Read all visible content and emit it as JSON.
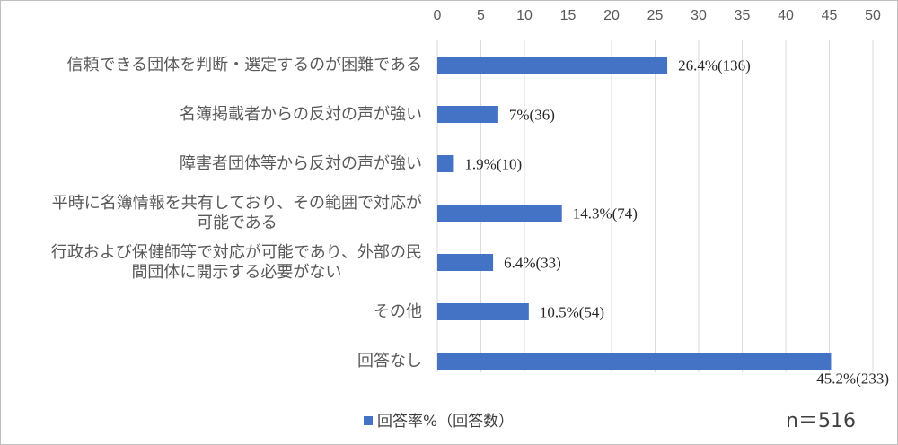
{
  "chart_data": {
    "type": "hbar",
    "categories": [
      "信頼できる団体を判断・選定するのが困難である",
      "名簿掲載者からの反対の声が強い",
      "障害者団体等から反対の声が強い",
      "平時に名簿情報を共有しており、その範囲で対応が\n可能である",
      "行政および保健師等で対応が可能であり、外部の民\n間団体に開示する必要がない",
      "その他",
      "回答なし"
    ],
    "series": [
      {
        "name": "回答率%（回答数）",
        "color": "#4472c4",
        "values": [
          26.4,
          7,
          1.9,
          14.3,
          6.4,
          10.5,
          45.2
        ],
        "value_labels": [
          "26.4%(136)",
          "7%(36)",
          "1.9%(10)",
          "14.3%(74)",
          "6.4%(33)",
          "10.5%(54)",
          "45.2%(233)"
        ]
      }
    ],
    "xlim": [
      0,
      50
    ],
    "xticks": [
      0,
      5,
      10,
      15,
      20,
      25,
      30,
      35,
      40,
      45,
      50
    ],
    "grid": true,
    "legend": "bottom",
    "annotation": "n＝516"
  }
}
